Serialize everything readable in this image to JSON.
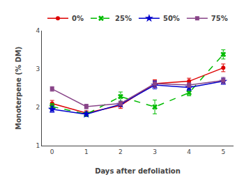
{
  "chart_data": {
    "type": "line",
    "x": [
      0,
      1,
      2,
      3,
      4,
      5
    ],
    "series": [
      {
        "name": "0%",
        "color": "#dd0000",
        "marker": "circle",
        "line_style": "solid",
        "values": [
          2.1,
          1.85,
          2.05,
          2.62,
          2.68,
          3.03
        ],
        "yerr": [
          0.08,
          0.06,
          0.08,
          0.1,
          0.08,
          0.1
        ]
      },
      {
        "name": "25%",
        "color": "#00bb00",
        "marker": "x",
        "line_style": "dashed",
        "values": [
          2.02,
          1.82,
          2.28,
          2.01,
          2.38,
          3.38
        ],
        "yerr": [
          0.08,
          0.06,
          0.12,
          0.18,
          0.08,
          0.12
        ]
      },
      {
        "name": "50%",
        "color": "#0000cc",
        "marker": "star",
        "line_style": "solid",
        "values": [
          1.95,
          1.82,
          2.08,
          2.58,
          2.52,
          2.68
        ],
        "yerr": [
          0.08,
          0.05,
          0.05,
          0.1,
          0.08,
          0.08
        ]
      },
      {
        "name": "75%",
        "color": "#884488",
        "marker": "square",
        "line_style": "solid",
        "values": [
          2.48,
          2.02,
          2.1,
          2.62,
          2.58,
          2.7
        ],
        "yerr": [
          0.06,
          0.06,
          0.06,
          0.08,
          0.06,
          0.08
        ]
      }
    ],
    "x_label": "Days after defoliation",
    "y_label": "Monoterpene (% DM)",
    "xlim": [
      -0.3,
      5.3
    ],
    "xticks": [
      0,
      1,
      2,
      3,
      4,
      5
    ],
    "ylim": [
      1.0,
      4.0
    ],
    "yticks": [
      1,
      2,
      3,
      4
    ],
    "grid": false,
    "legend": "top"
  }
}
